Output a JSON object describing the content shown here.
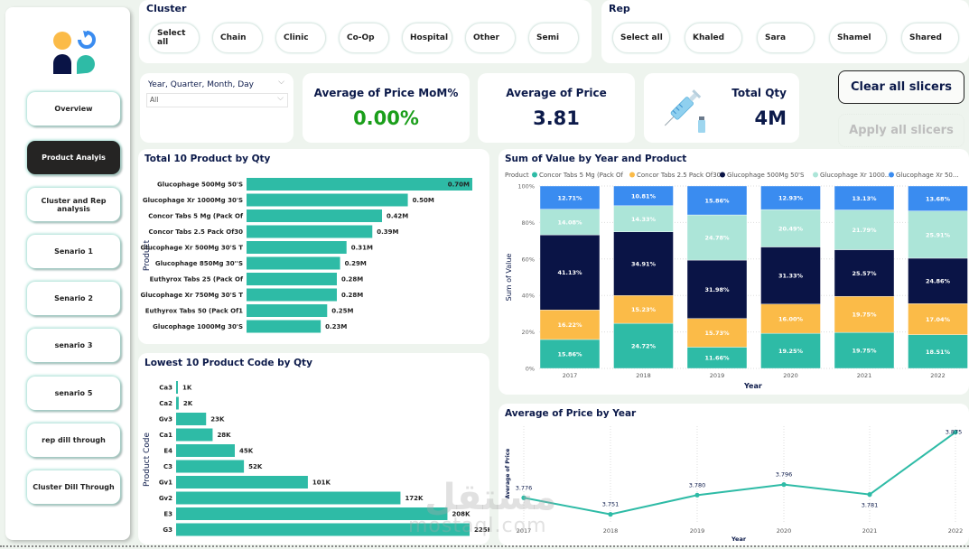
{
  "sidebar": {
    "items": [
      {
        "label": "Overview",
        "active": false
      },
      {
        "label": "Product Analyis",
        "active": true
      },
      {
        "label": "Cluster and Rep analysis",
        "active": false
      },
      {
        "label": "Senario 1",
        "active": false
      },
      {
        "label": "Senario 2",
        "active": false
      },
      {
        "label": "senario 3",
        "active": false
      },
      {
        "label": "senario 5",
        "active": false
      },
      {
        "label": "rep dill through",
        "active": false
      },
      {
        "label": "Cluster Dill Through",
        "active": false
      }
    ]
  },
  "cluster_slicer": {
    "title": "Cluster",
    "options": [
      "Select all",
      "Chain",
      "Clinic",
      "Co-Op",
      "Hospital",
      "Other",
      "Semi"
    ]
  },
  "rep_slicer": {
    "title": "Rep",
    "options": [
      "Select all",
      "Khaled",
      "Sara",
      "Shamel",
      "Shared"
    ]
  },
  "date_slicer": {
    "title": "Year, Quarter, Month, Day",
    "value": "All"
  },
  "kpis": {
    "mom": {
      "title": "Average of Price MoM%",
      "value": "0.00%",
      "color": "#1a9e1a"
    },
    "avg_price": {
      "title": "Average of Price",
      "value": "3.81"
    },
    "total_qty": {
      "title": "Total Qty",
      "value": "4M"
    }
  },
  "buttons": {
    "clear": "Clear all slicers",
    "apply": "Apply all slicers"
  },
  "colors": {
    "teal": "#2ebba6",
    "yellow": "#fbbb48",
    "navy": "#0a1446",
    "mint": "#ace5d8",
    "blue": "#3a8cf0",
    "title": "#0c1a4a"
  },
  "watermark": {
    "arabic": "مستقل",
    "latin": "mostaql.com"
  },
  "chart_data": [
    {
      "type": "bar",
      "orientation": "horizontal",
      "title": "Total 10 Product by Qty",
      "ylabel": "Product",
      "categories": [
        "Glucophage 500Mg 50'S",
        "Glucophage Xr 1000Mg 30'S",
        "Concor Tabs 5 Mg (Pack Of",
        "Concor Tabs 2.5 Pack Of30",
        "Glucophage Xr 500Mg 30'S T",
        "Glucophage 850Mg 30''S",
        "Euthyrox Tabs 25 (Pack Of",
        "Glucophage Xr 750Mg 30'S T",
        "Euthyrox Tabs 50 (Pack Of1",
        "Glucophage 1000Mg 30'S"
      ],
      "values": [
        0.7,
        0.5,
        0.42,
        0.39,
        0.31,
        0.29,
        0.28,
        0.28,
        0.25,
        0.23
      ],
      "labels": [
        "0.70M",
        "0.50M",
        "0.42M",
        "0.39M",
        "0.31M",
        "0.29M",
        "0.28M",
        "0.28M",
        "0.25M",
        "0.23M"
      ],
      "unit": "M"
    },
    {
      "type": "bar",
      "orientation": "horizontal",
      "title": "Lowest 10 Product Code by Qty",
      "ylabel": "Product Code",
      "categories": [
        "Ca3",
        "Ca2",
        "Gv3",
        "Ca1",
        "E4",
        "C3",
        "Gv1",
        "Gv2",
        "E3",
        "G3"
      ],
      "values": [
        1,
        2,
        23,
        28,
        45,
        52,
        101,
        172,
        208,
        225
      ],
      "labels": [
        "1K",
        "2K",
        "23K",
        "28K",
        "45K",
        "52K",
        "101K",
        "172K",
        "208K",
        "225K"
      ],
      "unit": "K"
    },
    {
      "type": "bar",
      "stacked": "100%",
      "title": "Sum of Value by Year and Product",
      "xlabel": "Year",
      "ylabel": "Sum of Value",
      "legend_title": "Product",
      "legend_position": "top",
      "categories": [
        "2017",
        "2018",
        "2019",
        "2020",
        "2021",
        "2022"
      ],
      "yticks": [
        "0%",
        "20%",
        "40%",
        "60%",
        "80%",
        "100%"
      ],
      "ylim": [
        0,
        100
      ],
      "series": [
        {
          "name": "Concor  Tabs 5 Mg (Pack Of",
          "color": "#2ebba6",
          "values": [
            15.86,
            24.72,
            11.66,
            19.25,
            19.75,
            18.51
          ]
        },
        {
          "name": "Concor Tabs 2.5 Pack Of30",
          "color": "#fbbb48",
          "values": [
            16.22,
            15.23,
            15.73,
            16.0,
            19.75,
            17.04
          ]
        },
        {
          "name": "Glucophage 500Mg 50'S",
          "color": "#0a1446",
          "values": [
            41.13,
            34.91,
            31.98,
            31.33,
            25.57,
            24.86
          ]
        },
        {
          "name": "Glucophage Xr 1000...",
          "color": "#ace5d8",
          "values": [
            14.08,
            14.33,
            24.78,
            20.49,
            21.79,
            25.91
          ]
        },
        {
          "name": "Glucophage Xr 50...",
          "color": "#3a8cf0",
          "values": [
            12.71,
            10.81,
            15.86,
            12.93,
            13.13,
            13.68
          ]
        }
      ]
    },
    {
      "type": "line",
      "title": "Average of Price by Year",
      "xlabel": "Year",
      "ylabel": "Average of Price",
      "x": [
        "2017",
        "2018",
        "2019",
        "2020",
        "2021",
        "2022"
      ],
      "values": [
        3.776,
        3.751,
        3.78,
        3.796,
        3.781,
        3.875
      ],
      "labels": [
        "3.776",
        "3.751",
        "3.780",
        "3.796",
        "3.781",
        "3.875"
      ],
      "ylim": [
        3.745,
        3.88
      ]
    }
  ]
}
